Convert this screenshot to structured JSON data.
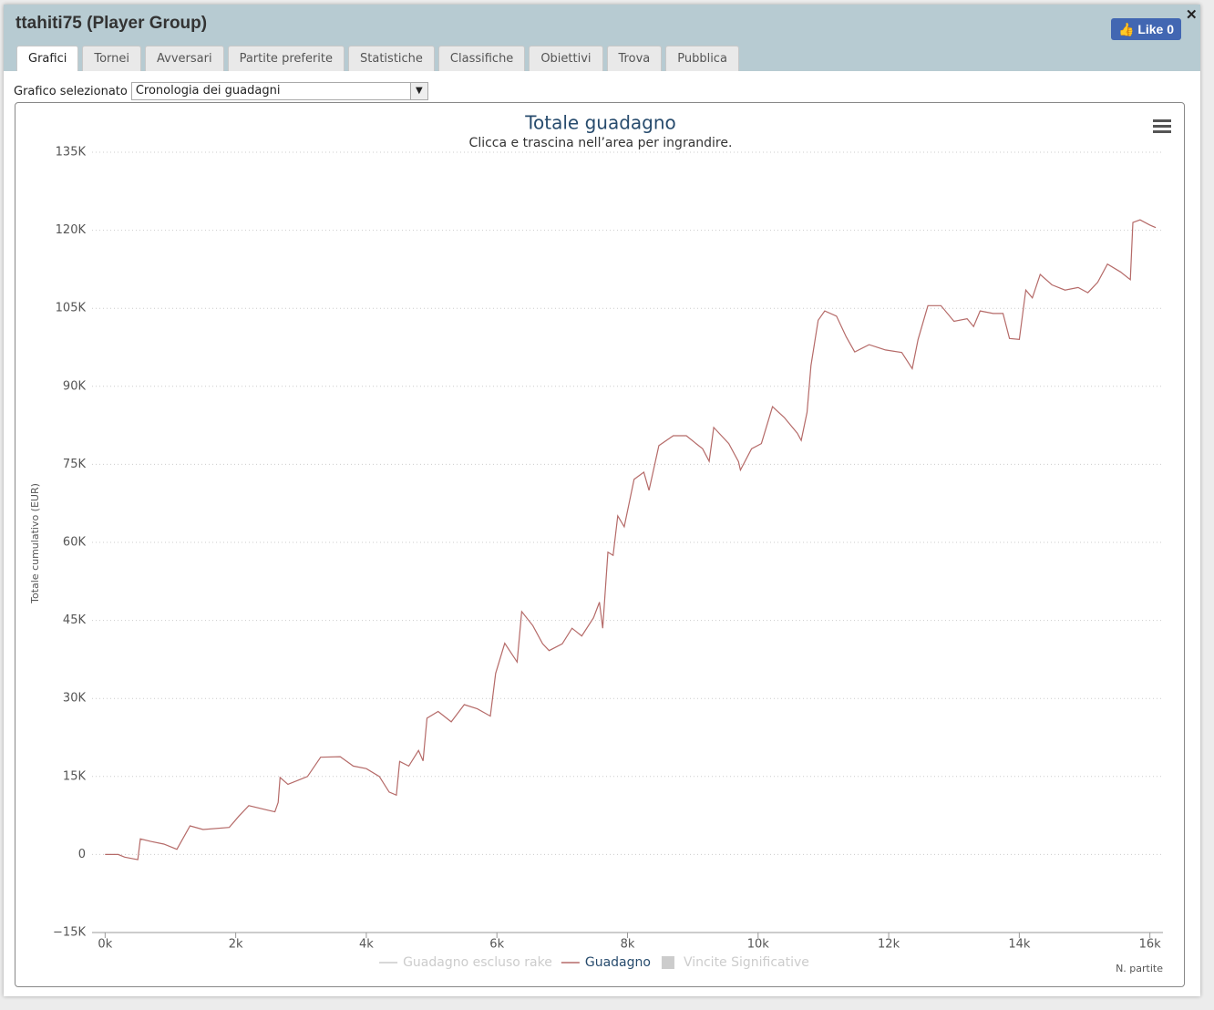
{
  "window": {
    "title": "ttahiti75 (Player Group)",
    "like_label": "Like",
    "like_count": 0
  },
  "tabs": [
    "Grafici",
    "Tornei",
    "Avversari",
    "Partite preferite",
    "Statistiche",
    "Classifiche",
    "Obiettivi",
    "Trova",
    "Pubblica"
  ],
  "active_tab": 0,
  "selector": {
    "label": "Grafico selezionato",
    "value": "Cronologia dei guadagni"
  },
  "chart_data": {
    "type": "line",
    "title": "Totale guadagno",
    "subtitle": "Clicca e trascina nell’area per ingrandire.",
    "y_label": "Totale cumulativo (EUR)",
    "x_label": "N. partite",
    "grid": true,
    "xlim": [
      -200,
      16200
    ],
    "xticks": [
      {
        "value": 0,
        "label": "0k"
      },
      {
        "value": 2000,
        "label": "2k"
      },
      {
        "value": 4000,
        "label": "4k"
      },
      {
        "value": 6000,
        "label": "6k"
      },
      {
        "value": 8000,
        "label": "8k"
      },
      {
        "value": 10000,
        "label": "10k"
      },
      {
        "value": 12000,
        "label": "12k"
      },
      {
        "value": 14000,
        "label": "14k"
      },
      {
        "value": 16000,
        "label": "16k"
      }
    ],
    "ylim": [
      -15000,
      135000
    ],
    "yticks": [
      {
        "value": -15000,
        "label": "−15K"
      },
      0,
      {
        "value": 15000,
        "label": "15K"
      },
      {
        "value": 30000,
        "label": "30K"
      },
      {
        "value": 45000,
        "label": "45K"
      },
      {
        "value": 60000,
        "label": "60K"
      },
      {
        "value": 75000,
        "label": "75K"
      },
      {
        "value": 90000,
        "label": "90K"
      },
      {
        "value": 105000,
        "label": "105K"
      },
      {
        "value": 120000,
        "label": "120K"
      },
      {
        "value": 135000,
        "label": "135K"
      }
    ],
    "x": [
      0,
      200,
      300,
      500,
      540,
      700,
      900,
      1100,
      1300,
      1500,
      1900,
      2050,
      2200,
      2500,
      2600,
      2650,
      2680,
      2800,
      3000,
      3100,
      3300,
      3600,
      3800,
      4000,
      4200,
      4350,
      4460,
      4510,
      4650,
      4800,
      4870,
      4930,
      5100,
      5300,
      5500,
      5700,
      5900,
      5980,
      6120,
      6310,
      6380,
      6550,
      6700,
      6800,
      7000,
      7150,
      7300,
      7480,
      7570,
      7620,
      7700,
      7780,
      7850,
      7950,
      8100,
      8250,
      8330,
      8480,
      8700,
      8900,
      9050,
      9150,
      9250,
      9320,
      9550,
      9700,
      9730,
      9900,
      10050,
      10220,
      10400,
      10600,
      10660,
      10750,
      10810,
      10920,
      11020,
      11200,
      11350,
      11480,
      11700,
      11950,
      12200,
      12360,
      12450,
      12600,
      12800,
      13000,
      13200,
      13300,
      13400,
      13600,
      13750,
      13850,
      14000,
      14100,
      14200,
      14320,
      14500,
      14700,
      14900,
      15050,
      15200,
      15350,
      15550,
      15700,
      15740,
      15850,
      16000,
      16090
    ],
    "series": [
      {
        "name": "Guadagno escluso rake",
        "color": "#cccccc",
        "symbol": "line",
        "visible": false
      },
      {
        "name": "Guadagno",
        "color": "#b56a68",
        "symbol": "line",
        "visible": true,
        "values": [
          0,
          0,
          -500,
          -1000,
          3000,
          2500,
          2000,
          1000,
          5500,
          4800,
          5200,
          7400,
          9400,
          8500,
          8200,
          10000,
          14800,
          13500,
          14500,
          15000,
          18700,
          18800,
          17000,
          16500,
          15000,
          12000,
          11400,
          17900,
          17000,
          20000,
          18000,
          26200,
          27500,
          25500,
          28800,
          28000,
          26600,
          34800,
          40600,
          37000,
          46700,
          44000,
          40500,
          39200,
          40500,
          43500,
          42000,
          45500,
          48500,
          43500,
          58100,
          57500,
          65100,
          63000,
          72100,
          73500,
          70000,
          78600,
          80500,
          80500,
          79000,
          78000,
          75600,
          82100,
          79000,
          75500,
          73900,
          78000,
          79000,
          86100,
          84000,
          81000,
          79600,
          85000,
          94000,
          102700,
          104500,
          103500,
          99500,
          96600,
          98000,
          97000,
          96500,
          93400,
          99000,
          105500,
          105500,
          102500,
          103000,
          101500,
          104500,
          104000,
          104000,
          99200,
          99000,
          108500,
          107000,
          111500,
          109500,
          108500,
          109000,
          108000,
          110000,
          113500,
          112000,
          110500,
          121500,
          122000,
          121000,
          120500
        ]
      },
      {
        "name": "Vincite Significative",
        "color": "#cccccc",
        "symbol": "square",
        "visible": false
      }
    ]
  }
}
